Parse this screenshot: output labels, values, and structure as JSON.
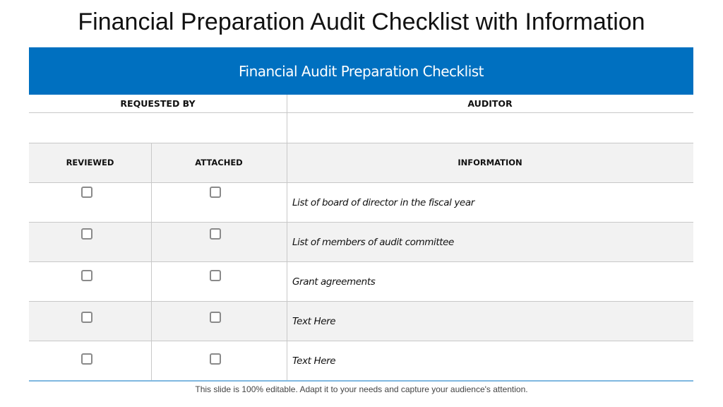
{
  "title": "Financial Preparation Audit Checklist with Information",
  "banner": "Financial Audit Preparation Checklist",
  "headers": {
    "requested_by": "REQUESTED BY",
    "auditor": "AUDITOR",
    "reviewed": "REVIEWED",
    "attached": "ATTACHED",
    "information": "INFORMATION"
  },
  "rows": [
    {
      "information": "List of board of director in the fiscal  year",
      "reviewed": false,
      "attached": false
    },
    {
      "information": "List of members of audit committee",
      "reviewed": false,
      "attached": false
    },
    {
      "information": "Grant agreements",
      "reviewed": false,
      "attached": false
    },
    {
      "information": "Text Here",
      "reviewed": false,
      "attached": false
    },
    {
      "information": "Text Here",
      "reviewed": false,
      "attached": false
    }
  ],
  "footer": "This slide is 100% editable. Adapt it to your needs and capture your audience's attention.",
  "colors": {
    "banner": "#0070C0",
    "alt_row": "#f2f2f2",
    "bottom_rule": "#7fb8e0"
  }
}
